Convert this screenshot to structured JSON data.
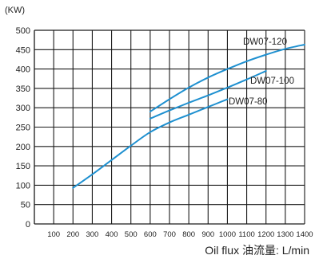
{
  "chart_data": {
    "type": "line",
    "unit_label": "(KW)",
    "xlabel": "Oil flux 油流量: L/min",
    "ylabel": "",
    "xlim": [
      0,
      1400
    ],
    "ylim": [
      0,
      500
    ],
    "x_ticks": [
      100,
      200,
      300,
      400,
      500,
      600,
      700,
      800,
      900,
      1000,
      1100,
      1200,
      1300,
      1400
    ],
    "y_ticks": [
      0,
      50,
      100,
      150,
      200,
      250,
      300,
      350,
      400,
      450,
      500
    ],
    "grid": true,
    "line_color": "#1e90d0",
    "series": [
      {
        "name": "DW07-120",
        "x": [
          600,
          700,
          800,
          900,
          1000,
          1100,
          1200,
          1300,
          1400
        ],
        "y": [
          290,
          322,
          352,
          378,
          400,
          420,
          437,
          452,
          463
        ]
      },
      {
        "name": "DW07-100",
        "x": [
          600,
          700,
          800,
          900,
          1000,
          1100,
          1200
        ],
        "y": [
          272,
          293,
          313,
          332,
          352,
          373,
          395
        ]
      },
      {
        "name": "DW07-80",
        "x": [
          200,
          300,
          400,
          500,
          600,
          700,
          800,
          900,
          1000
        ],
        "y": [
          93,
          128,
          165,
          202,
          237,
          262,
          282,
          302,
          322
        ]
      }
    ]
  }
}
